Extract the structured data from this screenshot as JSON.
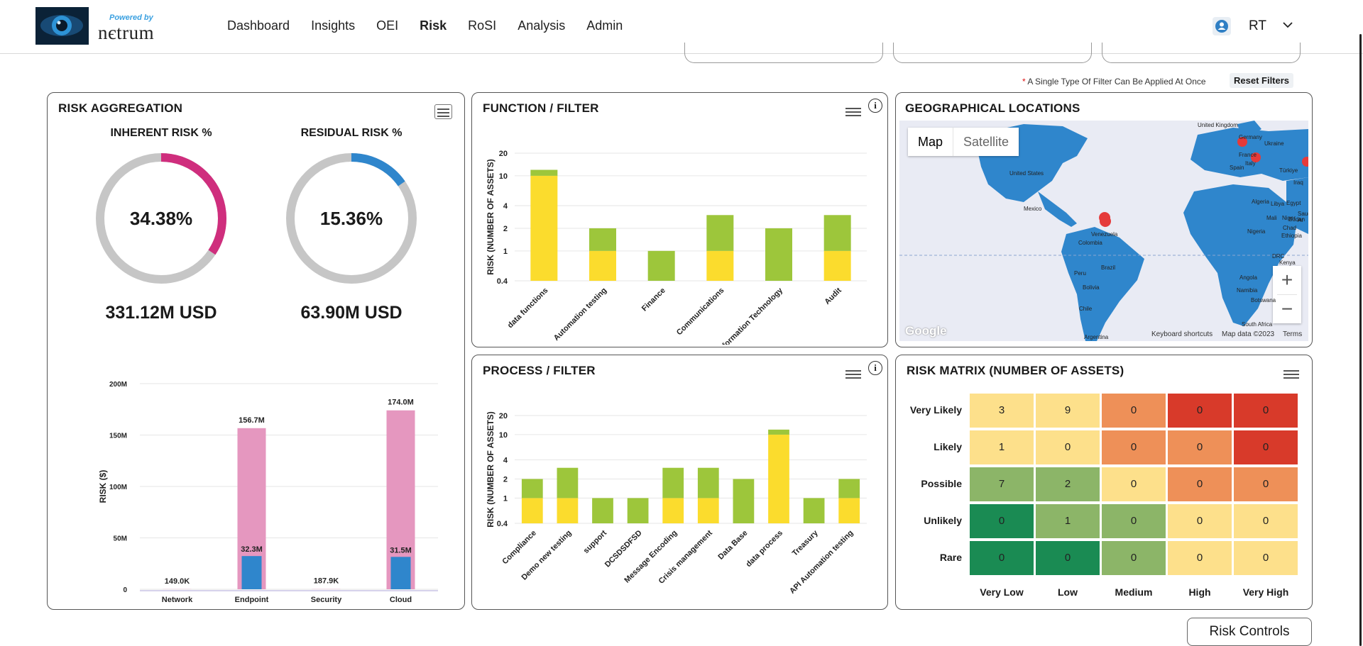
{
  "header": {
    "powered_by": "Powered by",
    "brand": "nєtrum",
    "nav": [
      {
        "label": "Dashboard",
        "active": false
      },
      {
        "label": "Insights",
        "active": false
      },
      {
        "label": "OEI",
        "active": false
      },
      {
        "label": "Risk",
        "active": true
      },
      {
        "label": "RoSI",
        "active": false
      },
      {
        "label": "Analysis",
        "active": false
      },
      {
        "label": "Admin",
        "active": false
      }
    ],
    "user_initials": "RT",
    "user_icon": "user-icon",
    "menu_icon": "chevron-down-icon"
  },
  "filters": {
    "note_star": "*",
    "note": " A Single Type Of Filter Can Be Applied At Once",
    "reset_label": "Reset Filters"
  },
  "risk_aggregation": {
    "title": "RISK AGGREGATION",
    "inherent": {
      "label": "INHERENT RISK %",
      "percent": 34.38,
      "percent_text": "34.38%",
      "usd": "331.12M USD",
      "color": "#cf2e7d"
    },
    "residual": {
      "label": "RESIDUAL RISK %",
      "percent": 15.36,
      "percent_text": "15.36%",
      "usd": "63.90M USD",
      "color": "#2f86cc"
    },
    "chart_data": {
      "type": "bar",
      "categories": [
        "Network",
        "Endpoint",
        "Security",
        "Cloud"
      ],
      "series": [
        {
          "name": "Inherent",
          "values": [
            0.149,
            156.7,
            0.1879,
            174.0
          ],
          "labels": [
            "149.0K",
            "156.7M",
            "187.9K",
            "174.0M"
          ],
          "color": "#e597bf"
        },
        {
          "name": "Residual",
          "values": [
            0,
            32.3,
            0,
            31.5
          ],
          "labels": [
            "",
            "32.3M",
            "",
            "31.5M"
          ],
          "color": "#2f86cc"
        }
      ],
      "ylabel": "RISK ($)",
      "yticks": [
        "0",
        "50M",
        "100M",
        "150M",
        "200M"
      ],
      "ylim": [
        0,
        200
      ]
    }
  },
  "function_filter": {
    "title": "FUNCTION / FILTER",
    "info": "i",
    "chart_data": {
      "type": "bar",
      "stacked": true,
      "scale": "log",
      "categories": [
        "data functions",
        "Automation testing",
        "Finance",
        "Communications",
        "Information Technology",
        "Audit"
      ],
      "series": [
        {
          "name": "yellow",
          "values": [
            10,
            1,
            0,
            1,
            0,
            1
          ],
          "color": "#fbdc2d"
        },
        {
          "name": "green",
          "values": [
            2,
            1,
            1,
            2,
            2,
            2
          ],
          "color": "#9dc63b"
        }
      ],
      "ylabel": "RISK (NUMBER OF ASSETS)",
      "yticks": [
        "0.4",
        "1",
        "2",
        "4",
        "10",
        "20"
      ]
    }
  },
  "process_filter": {
    "title": "PROCESS / FILTER",
    "info": "i",
    "chart_data": {
      "type": "bar",
      "stacked": true,
      "scale": "log",
      "categories": [
        "Compliance",
        "Demo new testing",
        "support",
        "DCSDSDFSD",
        "Message Encoding",
        "Crisis management",
        "Data Base",
        "data process",
        "Treasury",
        "API Automation testing"
      ],
      "series": [
        {
          "name": "yellow",
          "values": [
            1,
            1,
            0,
            0,
            1,
            1,
            0,
            10,
            0,
            1
          ],
          "color": "#fbdc2d"
        },
        {
          "name": "green",
          "values": [
            1,
            2,
            1,
            1,
            2,
            2,
            2,
            2,
            1,
            1
          ],
          "color": "#9dc63b"
        }
      ],
      "ylabel": "RISK (NUMBER OF ASSETS)",
      "yticks": [
        "0.4",
        "1",
        "2",
        "4",
        "10",
        "20"
      ]
    }
  },
  "geo": {
    "title": "GEOGRAPHICAL LOCATIONS",
    "map_btn": "Map",
    "satellite_btn": "Satellite",
    "zoom_in": "+",
    "zoom_out": "−",
    "google": "Google",
    "keyboard": "Keyboard shortcuts",
    "mapdata": "Map data ©2023",
    "terms": "Terms",
    "countries": [
      "United Kingdom",
      "Germany",
      "Ukraine",
      "France",
      "Italy",
      "Spain",
      "Türkiye",
      "Iraq",
      "United States",
      "Algeria",
      "Libya",
      "Egypt",
      "Saudi Ar",
      "Mexico",
      "Mali",
      "Niger",
      "Sudan",
      "Chad",
      "Venezuela",
      "Nigeria",
      "Ethiopia",
      "Colombia",
      "DRC",
      "Kenya",
      "Peru",
      "Brazil",
      "Angola",
      "Bolivia",
      "Namibia",
      "Botswana",
      "Chile",
      "South Africa",
      "Argentina"
    ]
  },
  "risk_matrix": {
    "title": "RISK MATRIX (NUMBER OF ASSETS)",
    "rows": [
      "Very Likely",
      "Likely",
      "Possible",
      "Unlikely",
      "Rare"
    ],
    "cols": [
      "Very Low",
      "Low",
      "Medium",
      "High",
      "Very High"
    ],
    "values": [
      [
        3,
        9,
        0,
        0,
        0
      ],
      [
        1,
        0,
        0,
        0,
        0
      ],
      [
        7,
        2,
        0,
        0,
        0
      ],
      [
        0,
        1,
        0,
        0,
        0
      ],
      [
        0,
        0,
        0,
        0,
        0
      ]
    ],
    "colors": [
      [
        "#fde08b",
        "#fde08b",
        "#ee9058",
        "#d83a2a",
        "#d83a2a"
      ],
      [
        "#fde08b",
        "#fde08b",
        "#ee9058",
        "#ee9058",
        "#d83a2a"
      ],
      [
        "#8cb568",
        "#8cb568",
        "#fde08b",
        "#ee9058",
        "#ee9058"
      ],
      [
        "#1a8b53",
        "#8cb568",
        "#8cb568",
        "#fde08b",
        "#fde08b"
      ],
      [
        "#1a8b53",
        "#1a8b53",
        "#8cb568",
        "#fde08b",
        "#fde08b"
      ]
    ]
  },
  "footer": {
    "risk_controls": "Risk Controls"
  }
}
